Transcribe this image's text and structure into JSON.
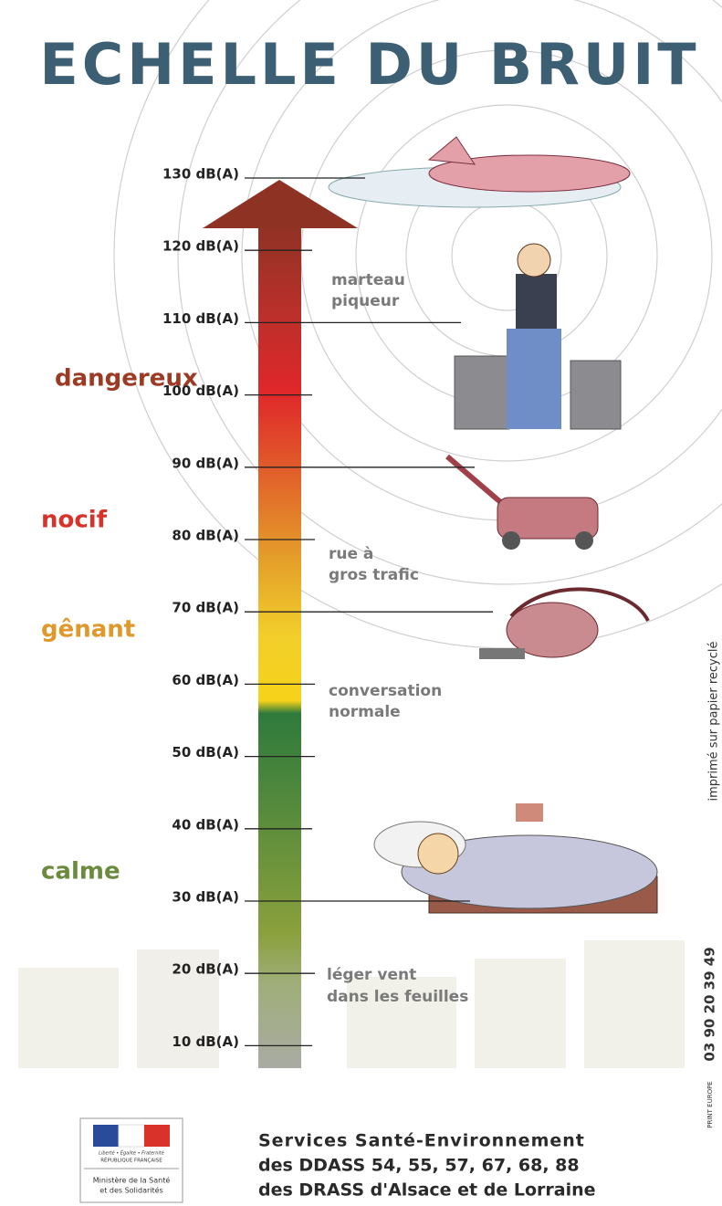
{
  "title": "ECHELLE DU BRUIT",
  "levels": [
    "130 dB(A)",
    "120 dB(A)",
    "110 dB(A)",
    "100 dB(A)",
    "90 dB(A)",
    "80 dB(A)",
    "70 dB(A)",
    "60 dB(A)",
    "50 dB(A)",
    "40 dB(A)",
    "30 dB(A)",
    "20 dB(A)",
    "10 dB(A)"
  ],
  "zones": [
    "dangereux",
    "nocif",
    "gênant",
    "calme"
  ],
  "examples": [
    [
      "marteau",
      "piqueur"
    ],
    [
      "rue à",
      "gros trafic"
    ],
    [
      "conversation",
      "normale"
    ],
    [
      "léger vent",
      "dans les feuilles"
    ]
  ],
  "side_note": "imprimé sur papier recyclé",
  "phone": "03 90 20 39 49",
  "printer": "PRINT EUROPE",
  "logo": [
    "Liberté • Égalité • Fraternité",
    "RÉPUBLIQUE FRANÇAISE",
    "Ministère de la Santé",
    "et des Solidarités"
  ],
  "footer": [
    "Services Santé-Environnement",
    "des DDASS 54, 55, 57, 67, 68, 88",
    "des DRASS d'Alsace et de Lorraine"
  ]
}
